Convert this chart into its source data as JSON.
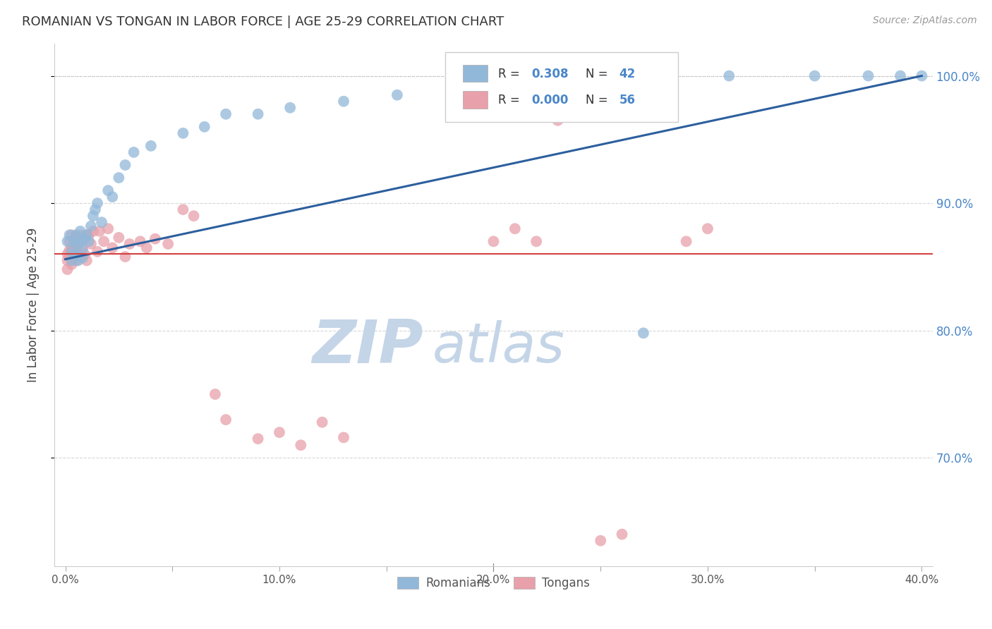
{
  "title": "ROMANIAN VS TONGAN IN LABOR FORCE | AGE 25-29 CORRELATION CHART",
  "source": "Source: ZipAtlas.com",
  "ylabel": "In Labor Force | Age 25-29",
  "xlim": [
    -0.005,
    0.405
  ],
  "ylim": [
    0.615,
    1.025
  ],
  "yticks": [
    0.7,
    0.8,
    0.9,
    1.0
  ],
  "xticks": [
    0.0,
    0.05,
    0.1,
    0.15,
    0.2,
    0.25,
    0.3,
    0.35,
    0.4
  ],
  "xtick_labels": [
    "0.0%",
    "",
    "10.0%",
    "",
    "20.0%",
    "",
    "30.0%",
    "",
    "40.0%"
  ],
  "ytick_labels": [
    "70.0%",
    "80.0%",
    "90.0%",
    "100.0%"
  ],
  "blue_color": "#92b8d9",
  "pink_color": "#e8a0aa",
  "trend_blue": "#2c5f9e",
  "trend_pink": "#d44040",
  "axis_blue": "#4a86c8",
  "watermark_zip": "ZIP",
  "watermark_atlas": "atlas",
  "watermark_color": "#c5d5e8",
  "blue_x": [
    0.001,
    0.002,
    0.003,
    0.003,
    0.004,
    0.005,
    0.005,
    0.006,
    0.006,
    0.007,
    0.007,
    0.008,
    0.008,
    0.009,
    0.01,
    0.011,
    0.012,
    0.013,
    0.014,
    0.015,
    0.017,
    0.02,
    0.022,
    0.025,
    0.028,
    0.032,
    0.04,
    0.055,
    0.065,
    0.075,
    0.09,
    0.105,
    0.13,
    0.155,
    0.185,
    0.22,
    0.27,
    0.31,
    0.35,
    0.375,
    0.39,
    0.4
  ],
  "blue_y": [
    0.87,
    0.875,
    0.862,
    0.855,
    0.87,
    0.875,
    0.86,
    0.868,
    0.855,
    0.87,
    0.878,
    0.863,
    0.857,
    0.872,
    0.875,
    0.87,
    0.882,
    0.89,
    0.895,
    0.9,
    0.885,
    0.91,
    0.905,
    0.92,
    0.93,
    0.94,
    0.945,
    0.955,
    0.96,
    0.97,
    0.97,
    0.975,
    0.98,
    0.985,
    0.99,
    0.995,
    0.798,
    1.0,
    1.0,
    1.0,
    1.0,
    1.0
  ],
  "pink_x": [
    0.001,
    0.001,
    0.001,
    0.002,
    0.002,
    0.002,
    0.003,
    0.003,
    0.003,
    0.004,
    0.004,
    0.005,
    0.005,
    0.005,
    0.006,
    0.006,
    0.007,
    0.007,
    0.008,
    0.008,
    0.009,
    0.01,
    0.01,
    0.011,
    0.012,
    0.013,
    0.015,
    0.016,
    0.018,
    0.02,
    0.022,
    0.025,
    0.028,
    0.03,
    0.035,
    0.038,
    0.042,
    0.048,
    0.055,
    0.06,
    0.07,
    0.075,
    0.09,
    0.1,
    0.11,
    0.12,
    0.13,
    0.2,
    0.21,
    0.22,
    0.23,
    0.24,
    0.25,
    0.26,
    0.29,
    0.3
  ],
  "pink_y": [
    0.86,
    0.855,
    0.848,
    0.863,
    0.87,
    0.858,
    0.875,
    0.865,
    0.852,
    0.862,
    0.858,
    0.873,
    0.865,
    0.855,
    0.868,
    0.86,
    0.875,
    0.858,
    0.872,
    0.865,
    0.86,
    0.875,
    0.855,
    0.875,
    0.868,
    0.878,
    0.862,
    0.878,
    0.87,
    0.88,
    0.865,
    0.873,
    0.858,
    0.868,
    0.87,
    0.865,
    0.872,
    0.868,
    0.895,
    0.89,
    0.75,
    0.73,
    0.715,
    0.72,
    0.71,
    0.728,
    0.716,
    0.87,
    0.88,
    0.87,
    0.965,
    0.98,
    0.635,
    0.64,
    0.87,
    0.88
  ],
  "blue_trend_x": [
    0.0,
    0.4
  ],
  "blue_trend_y": [
    0.856,
    1.0
  ],
  "pink_trend_y": 0.86
}
